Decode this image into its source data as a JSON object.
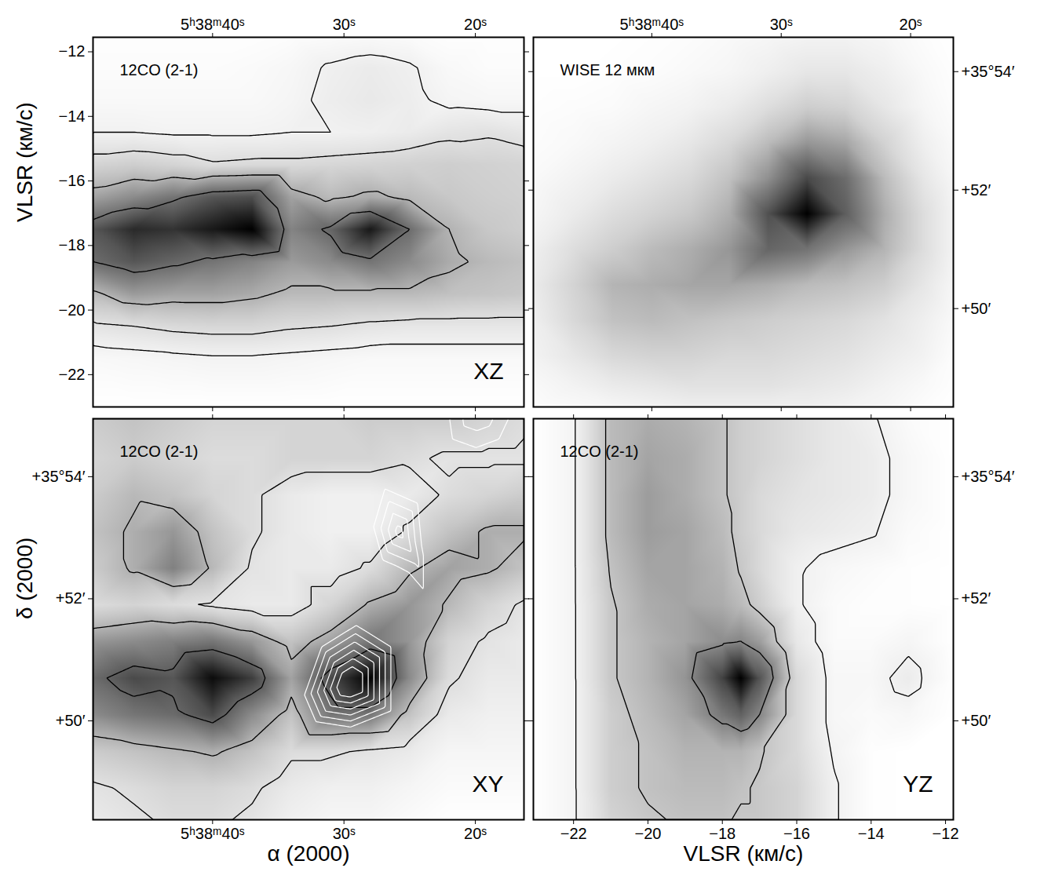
{
  "chart_data": [
    {
      "type": "heatmap",
      "title": "12CO (2-1)",
      "annotation": "XZ",
      "x": [
        49.1,
        46,
        43,
        40,
        37,
        34,
        31,
        28,
        25,
        22,
        19,
        16.3
      ],
      "y": [
        -11.55,
        -12.5,
        -13.5,
        -14.5,
        -15.5,
        -16.5,
        -17.5,
        -18.5,
        -19.5,
        -20.5,
        -21.5,
        -23
      ],
      "cells": [
        [
          0.3,
          0.3,
          0.3,
          0.3,
          0.3,
          0.4,
          0.5,
          0.6,
          0.5,
          0.3,
          0.3,
          0.3
        ],
        [
          0.4,
          0.4,
          0.4,
          0.4,
          0.5,
          0.7,
          1.1,
          1.3,
          1.1,
          0.6,
          0.4,
          0.4
        ],
        [
          0.6,
          0.6,
          0.6,
          0.6,
          0.6,
          0.8,
          1.2,
          1.4,
          1.2,
          0.8,
          0.7,
          0.7
        ],
        [
          1.0,
          1.0,
          0.9,
          0.9,
          0.9,
          1.0,
          1.0,
          1.1,
          1.3,
          1.6,
          1.7,
          1.5
        ],
        [
          2.2,
          2.4,
          2.2,
          1.9,
          2.0,
          2.0,
          2.1,
          2.2,
          2.3,
          2.4,
          2.3,
          2.2
        ],
        [
          3.6,
          4.2,
          4.8,
          5.6,
          5.8,
          3.6,
          3.0,
          3.4,
          3.0,
          2.6,
          2.4,
          2.3
        ],
        [
          5.6,
          6.6,
          6.4,
          7.0,
          7.6,
          4.4,
          5.2,
          7.0,
          5.0,
          3.2,
          2.6,
          2.4
        ],
        [
          5.0,
          5.6,
          5.2,
          4.8,
          4.4,
          3.8,
          4.2,
          4.8,
          4.2,
          3.4,
          3.0,
          2.8
        ],
        [
          3.0,
          3.8,
          3.6,
          3.6,
          3.4,
          3.0,
          3.0,
          3.0,
          3.0,
          2.8,
          2.7,
          2.6
        ],
        [
          1.6,
          1.8,
          2.0,
          2.1,
          2.1,
          1.9,
          1.8,
          1.6,
          1.5,
          1.5,
          1.5,
          1.5
        ],
        [
          0.6,
          0.7,
          0.8,
          0.9,
          0.9,
          0.8,
          0.7,
          0.6,
          0.6,
          0.6,
          0.6,
          0.6
        ],
        [
          0.2,
          0.2,
          0.2,
          0.2,
          0.2,
          0.2,
          0.2,
          0.2,
          0.2,
          0.2,
          0.2,
          0.2
        ]
      ],
      "contours": [
        1.0,
        1.8,
        3.2,
        5.0
      ],
      "xlim": [
        49.1,
        16.3
      ],
      "ylim": [
        -23,
        -11.55
      ],
      "xticks": [
        {
          "value": 40,
          "label": "5ʰ38ᵐ40ˢ"
        },
        {
          "value": 30,
          "label": "30ˢ"
        },
        {
          "value": 20,
          "label": "20ˢ"
        }
      ],
      "yticks": [
        -22,
        -20,
        -18,
        -16,
        -14,
        -12
      ],
      "ylabel": "VLSR (км/с)"
    },
    {
      "type": "heatmap",
      "title": "WISE 12 мкм",
      "x": [
        49.15,
        46,
        43,
        40,
        37,
        34,
        31,
        28,
        25,
        22,
        19,
        16.7
      ],
      "y": [
        54.58,
        54.0,
        53.4,
        52.8,
        52.2,
        51.6,
        51.0,
        50.4,
        49.8,
        49.2,
        48.7,
        48.34
      ],
      "cells": [
        [
          0.2,
          0.2,
          0.2,
          0.3,
          0.4,
          0.6,
          0.8,
          1.0,
          1.0,
          0.8,
          0.4,
          0.2
        ],
        [
          0.2,
          0.2,
          0.3,
          0.4,
          0.6,
          0.8,
          1.2,
          1.6,
          1.6,
          1.2,
          0.6,
          0.3
        ],
        [
          0.3,
          0.4,
          0.5,
          0.8,
          1.0,
          1.4,
          2.0,
          2.6,
          2.4,
          1.6,
          0.8,
          0.4
        ],
        [
          0.4,
          0.6,
          0.9,
          1.2,
          1.6,
          2.2,
          3.2,
          4.2,
          3.8,
          2.4,
          1.2,
          0.6
        ],
        [
          0.6,
          1.0,
          1.4,
          1.8,
          2.2,
          3.0,
          4.4,
          6.4,
          5.4,
          3.2,
          1.6,
          0.8
        ],
        [
          0.8,
          1.4,
          2.0,
          2.4,
          2.8,
          3.6,
          6.2,
          8.2,
          5.8,
          3.6,
          2.0,
          1.0
        ],
        [
          1.2,
          2.0,
          2.6,
          3.2,
          3.6,
          4.2,
          5.6,
          5.2,
          4.2,
          3.4,
          2.0,
          1.0
        ],
        [
          1.4,
          2.4,
          3.4,
          3.6,
          3.8,
          3.8,
          3.6,
          3.2,
          3.0,
          2.6,
          1.6,
          0.8
        ],
        [
          1.2,
          2.2,
          3.0,
          3.2,
          3.0,
          2.8,
          2.6,
          2.4,
          2.2,
          1.8,
          1.2,
          0.6
        ],
        [
          1.0,
          1.6,
          2.2,
          2.4,
          2.4,
          2.2,
          2.2,
          2.0,
          1.8,
          1.4,
          1.0,
          0.4
        ],
        [
          0.6,
          1.0,
          1.4,
          1.6,
          1.8,
          1.8,
          1.8,
          1.6,
          1.4,
          1.0,
          0.6,
          0.3
        ],
        [
          0.4,
          0.6,
          0.8,
          1.0,
          1.2,
          1.2,
          1.2,
          1.2,
          1.0,
          0.8,
          0.4,
          0.2
        ]
      ],
      "xlim": [
        49.15,
        16.7
      ],
      "ylim": [
        48.34,
        54.58
      ],
      "xticks": [
        {
          "value": 40,
          "label": "5ʰ38ᵐ40ˢ"
        },
        {
          "value": 30,
          "label": "30ˢ"
        },
        {
          "value": 20,
          "label": "20ˢ"
        }
      ],
      "yticks": [
        {
          "value": 54,
          "label": "+35°54′"
        },
        {
          "value": 52,
          "label": "+52′"
        },
        {
          "value": 50,
          "label": "+50′"
        }
      ]
    },
    {
      "type": "heatmap",
      "title": "12CO (2-1)",
      "annotation": "XY",
      "x": [
        49.1,
        46,
        43,
        40,
        37,
        34,
        31,
        28,
        25,
        22,
        19,
        16.3
      ],
      "y": [
        54.95,
        54.3,
        53.7,
        53.1,
        52.5,
        51.9,
        51.3,
        50.7,
        50.1,
        49.5,
        48.9,
        48.38
      ],
      "cells": [
        [
          3.0,
          3.2,
          3.0,
          2.8,
          2.8,
          2.8,
          2.8,
          3.0,
          3.0,
          3.0,
          2.8,
          2.6
        ],
        [
          2.8,
          3.0,
          2.8,
          2.6,
          2.6,
          2.8,
          2.8,
          2.8,
          2.6,
          2.4,
          2.4,
          2.4
        ],
        [
          3.0,
          3.4,
          3.2,
          2.8,
          2.6,
          2.2,
          2.0,
          2.0,
          2.2,
          2.6,
          2.8,
          3.0
        ],
        [
          3.2,
          3.6,
          4.0,
          3.2,
          2.6,
          2.2,
          2.0,
          2.0,
          2.6,
          3.2,
          3.6,
          3.6
        ],
        [
          3.0,
          3.6,
          4.4,
          3.4,
          2.4,
          2.2,
          2.2,
          2.6,
          3.4,
          3.8,
          3.6,
          3.2
        ],
        [
          2.6,
          2.8,
          2.6,
          2.4,
          2.2,
          2.2,
          2.8,
          3.6,
          4.0,
          3.4,
          2.8,
          2.4
        ],
        [
          4.0,
          4.2,
          4.4,
          4.6,
          4.0,
          3.2,
          3.8,
          4.6,
          4.0,
          2.8,
          2.4,
          2.2
        ],
        [
          4.8,
          5.4,
          5.2,
          6.4,
          5.6,
          3.8,
          5.4,
          6.6,
          4.2,
          2.6,
          2.2,
          2.2
        ],
        [
          4.2,
          4.6,
          4.8,
          5.4,
          4.2,
          3.2,
          4.6,
          4.6,
          3.2,
          2.2,
          2.0,
          2.0
        ],
        [
          3.0,
          3.2,
          3.4,
          3.6,
          3.2,
          2.6,
          2.6,
          2.4,
          2.2,
          1.8,
          1.8,
          1.8
        ],
        [
          2.4,
          2.6,
          2.8,
          2.8,
          2.6,
          2.2,
          2.0,
          2.0,
          1.8,
          1.6,
          1.6,
          1.6
        ],
        [
          2.2,
          2.4,
          2.6,
          2.6,
          2.4,
          2.0,
          1.8,
          1.8,
          1.6,
          1.4,
          1.4,
          1.4
        ]
      ],
      "contours": [
        2.5,
        3.5,
        5.0
      ],
      "overlay": {
        "points": [
          [
            49.1,
            54.95,
            0
          ],
          [
            16.3,
            54.95,
            0
          ],
          [
            49.1,
            48.38,
            0
          ],
          [
            16.3,
            48.38,
            0
          ],
          [
            40,
            52,
            0
          ],
          [
            36,
            53.5,
            0
          ],
          [
            45,
            50,
            0
          ],
          [
            35,
            49,
            0
          ],
          [
            20,
            50,
            0
          ],
          [
            22,
            48.6,
            0
          ],
          [
            19,
            52.5,
            0
          ],
          [
            32,
            54.5,
            0
          ],
          [
            31,
            52.6,
            0
          ],
          [
            29.5,
            50.6,
            6.5
          ],
          [
            33.5,
            50.4,
            0
          ],
          [
            32,
            51.3,
            0
          ],
          [
            29,
            51.7,
            0
          ],
          [
            26,
            51.3,
            0
          ],
          [
            24,
            51.0,
            0
          ],
          [
            26,
            50.1,
            0
          ],
          [
            29.5,
            49.8,
            0
          ],
          [
            32.5,
            49.9,
            0
          ],
          [
            25.8,
            53.1,
            3.6
          ],
          [
            24.4,
            52.6,
            1.8
          ],
          [
            28.3,
            53.2,
            0
          ],
          [
            27.2,
            54.0,
            0
          ],
          [
            25.5,
            54.2,
            0
          ],
          [
            24.0,
            53.7,
            0
          ],
          [
            23.6,
            52.8,
            0
          ],
          [
            23.6,
            51.8,
            0
          ],
          [
            25.6,
            52.3,
            0
          ],
          [
            27.4,
            52.5,
            0
          ],
          [
            19.8,
            55.1,
            2.6
          ],
          [
            23.2,
            55.3,
            0
          ],
          [
            22.6,
            54.4,
            0
          ],
          [
            20,
            54.2,
            0
          ],
          [
            17.5,
            54.4,
            0
          ],
          [
            16.0,
            55.4,
            0
          ]
        ],
        "contours": [
          0.8,
          1.6,
          2.4,
          3.2,
          4.0,
          4.8
        ]
      },
      "xlim": [
        49.1,
        16.3
      ],
      "ylim": [
        48.38,
        54.95
      ],
      "xticks": [
        {
          "value": 40,
          "label": "5ʰ38ᵐ40ˢ"
        },
        {
          "value": 30,
          "label": "30ˢ"
        },
        {
          "value": 20,
          "label": "20ˢ"
        }
      ],
      "yticks": [
        {
          "value": 54,
          "label": "+35°54′"
        },
        {
          "value": 52,
          "label": "+52′"
        },
        {
          "value": 50,
          "label": "+50′"
        }
      ],
      "xlabel": "α (2000)",
      "ylabel": "δ (2000)"
    },
    {
      "type": "heatmap",
      "title": "12CO (2-1)",
      "annotation": "YZ",
      "x": [
        -23.08,
        -22,
        -21,
        -20,
        -19,
        -18,
        -17.5,
        -17,
        -16,
        -15,
        -14,
        -13,
        -11.79
      ],
      "y": [
        54.95,
        54.3,
        53.7,
        53.1,
        52.5,
        51.9,
        51.3,
        50.7,
        50.1,
        49.5,
        48.9,
        48.38
      ],
      "cells": [
        [
          0.3,
          1.0,
          3.2,
          3.6,
          3.4,
          3.0,
          2.6,
          2.4,
          2.0,
          1.6,
          1.2,
          0.6,
          0.3
        ],
        [
          0.3,
          1.0,
          3.2,
          3.8,
          3.6,
          3.0,
          2.6,
          2.4,
          2.0,
          1.6,
          1.4,
          0.8,
          0.3
        ],
        [
          0.3,
          1.0,
          3.2,
          4.0,
          3.6,
          3.0,
          2.6,
          2.2,
          1.8,
          1.6,
          1.4,
          0.8,
          0.3
        ],
        [
          0.3,
          1.0,
          3.2,
          4.0,
          3.8,
          3.2,
          2.6,
          2.2,
          1.6,
          1.4,
          1.2,
          0.6,
          0.3
        ],
        [
          0.3,
          1.0,
          3.0,
          3.8,
          3.8,
          3.4,
          2.8,
          2.2,
          1.2,
          0.8,
          0.6,
          0.4,
          0.3
        ],
        [
          0.3,
          1.0,
          2.8,
          3.6,
          3.8,
          3.6,
          3.2,
          2.6,
          1.2,
          0.6,
          0.4,
          0.4,
          0.3
        ],
        [
          0.3,
          1.0,
          2.8,
          3.4,
          3.8,
          4.4,
          4.6,
          4.0,
          1.6,
          0.6,
          0.6,
          0.9,
          0.3
        ],
        [
          0.3,
          1.0,
          2.8,
          3.4,
          4.2,
          6.4,
          8.0,
          6.0,
          2.2,
          0.8,
          0.8,
          1.4,
          0.4
        ],
        [
          0.3,
          1.0,
          2.6,
          3.2,
          3.8,
          5.0,
          5.6,
          4.6,
          2.2,
          0.8,
          0.6,
          0.8,
          0.3
        ],
        [
          0.3,
          1.0,
          2.6,
          3.0,
          3.4,
          3.4,
          3.4,
          3.0,
          2.2,
          1.0,
          0.4,
          0.3,
          0.3
        ],
        [
          0.3,
          1.0,
          2.6,
          3.0,
          3.2,
          3.2,
          3.0,
          2.8,
          2.4,
          1.2,
          0.4,
          0.3,
          0.3
        ],
        [
          0.3,
          1.0,
          2.4,
          2.8,
          3.0,
          3.0,
          2.8,
          2.8,
          2.4,
          1.2,
          0.4,
          0.3,
          0.3
        ]
      ],
      "contours": [
        1.1,
        2.9,
        4.6
      ],
      "xlim": [
        -23.08,
        -11.79
      ],
      "ylim": [
        48.38,
        54.95
      ],
      "xticks": [
        -22,
        -20,
        -18,
        -16,
        -14,
        -12
      ],
      "yticks": [
        {
          "value": 54,
          "label": "+35°54′"
        },
        {
          "value": 52,
          "label": "+52′"
        },
        {
          "value": 50,
          "label": "+50′"
        }
      ],
      "xlabel": "VLSR (км/с)"
    }
  ]
}
